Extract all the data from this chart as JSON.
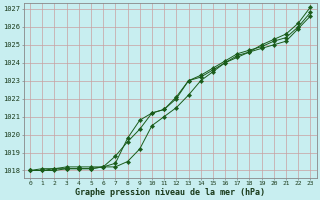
{
  "title": "Graphe pression niveau de la mer (hPa)",
  "bg_color": "#c8eef0",
  "grid_color": "#c8a0a0",
  "line_color": "#1a5c1a",
  "marker_color": "#1a5c1a",
  "xlim_min": -0.5,
  "xlim_max": 23.5,
  "ylim_min": 1017.6,
  "ylim_max": 1027.3,
  "yticks": [
    1018,
    1019,
    1020,
    1021,
    1022,
    1023,
    1024,
    1025,
    1026,
    1027
  ],
  "xticks": [
    0,
    1,
    2,
    3,
    4,
    5,
    6,
    7,
    8,
    9,
    10,
    11,
    12,
    13,
    14,
    15,
    16,
    17,
    18,
    19,
    20,
    21,
    22,
    23
  ],
  "series1": [
    1018.0,
    1018.1,
    1018.1,
    1018.2,
    1018.2,
    1018.2,
    1018.2,
    1018.8,
    1019.6,
    1020.3,
    1021.2,
    1021.4,
    1022.0,
    1023.0,
    1023.2,
    1023.6,
    1024.0,
    1024.4,
    1024.6,
    1024.8,
    1025.0,
    1025.2,
    1025.9,
    1026.6
  ],
  "series2": [
    1018.0,
    1018.0,
    1018.1,
    1018.1,
    1018.1,
    1018.1,
    1018.2,
    1018.4,
    1019.8,
    1020.8,
    1021.2,
    1021.4,
    1022.1,
    1023.0,
    1023.3,
    1023.7,
    1024.1,
    1024.5,
    1024.7,
    1024.9,
    1025.2,
    1025.4,
    1026.0,
    1026.8
  ],
  "series3": [
    1018.0,
    1018.0,
    1018.0,
    1018.1,
    1018.1,
    1018.1,
    1018.2,
    1018.2,
    1018.5,
    1019.2,
    1020.5,
    1021.0,
    1021.5,
    1022.2,
    1023.0,
    1023.5,
    1024.0,
    1024.3,
    1024.6,
    1025.0,
    1025.3,
    1025.6,
    1026.2,
    1027.1
  ],
  "figwidth": 3.2,
  "figheight": 2.0,
  "dpi": 100
}
